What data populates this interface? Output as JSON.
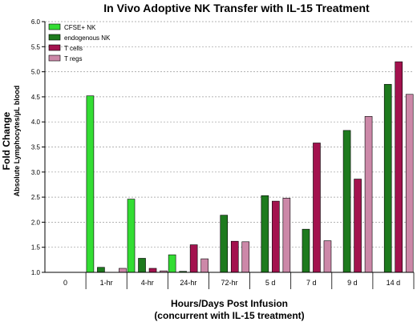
{
  "chart_data": {
    "type": "bar",
    "title": "In Vivo Adoptive NK Transfer with IL-15 Treatment",
    "ylabel": "Fold Change",
    "ylabel_sub": "Absolute Lymphocytes/µL blood",
    "xlabel": "Hours/Days Post Infusion",
    "xlabel_sub": "(concurrent with IL-15 treatment)",
    "categories": [
      "0",
      "1-hr",
      "4-hr",
      "24-hr",
      "72-hr",
      "5 d",
      "7 d",
      "9 d",
      "14 d"
    ],
    "ylim": [
      1.0,
      6.0
    ],
    "yticks": [
      "1.0",
      "1.5",
      "2.0",
      "2.5",
      "3.0",
      "3.5",
      "4.0",
      "4.5",
      "5.0",
      "5.5",
      "6.0"
    ],
    "grid": true,
    "legend_position": "top-left",
    "series": [
      {
        "name": "CFSE+ NK",
        "color": "#33dd33",
        "values": [
          null,
          4.52,
          2.46,
          1.35,
          null,
          null,
          null,
          null,
          null
        ]
      },
      {
        "name": "endogenous NK",
        "color": "#1d7a1d",
        "values": [
          null,
          1.1,
          1.28,
          1.02,
          2.14,
          2.53,
          1.86,
          3.83,
          4.75
        ]
      },
      {
        "name": "T cells",
        "color": "#a3124e",
        "values": [
          null,
          null,
          1.08,
          1.55,
          1.62,
          2.42,
          3.58,
          2.86,
          5.2
        ]
      },
      {
        "name": "T regs",
        "color": "#cc88a8",
        "values": [
          null,
          1.08,
          1.03,
          1.27,
          1.61,
          2.48,
          1.63,
          4.11,
          4.55
        ]
      }
    ]
  }
}
